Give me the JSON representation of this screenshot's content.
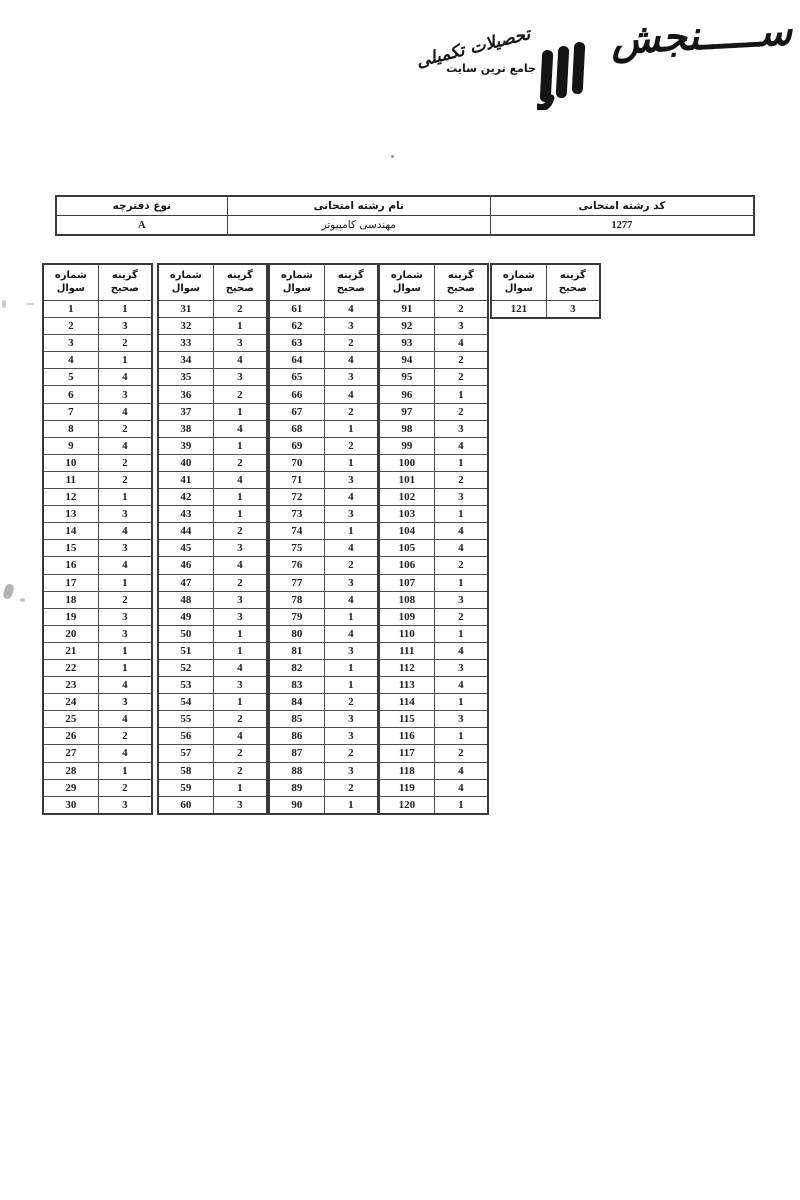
{
  "logo": {
    "brand": "ســـــنجش",
    "numeral": "۳",
    "tagline": "جامع ترین سایت",
    "tagline_script": "تحصیلات تکمیلی"
  },
  "info": {
    "columns": [
      {
        "label": "کد رشته امتحانی",
        "value": "1277"
      },
      {
        "label": "نام رشته امتحانی",
        "value": "مهندسی کامپیوتر"
      },
      {
        "label": "نوع دفترچه",
        "value": "A"
      }
    ]
  },
  "answers": {
    "q_header": [
      "شماره",
      "سوال"
    ],
    "a_header": [
      "گزینه",
      "صحیح"
    ],
    "tables": [
      {
        "rows": [
          [
            1,
            1
          ],
          [
            2,
            3
          ],
          [
            3,
            2
          ],
          [
            4,
            1
          ],
          [
            5,
            4
          ],
          [
            6,
            3
          ],
          [
            7,
            4
          ],
          [
            8,
            2
          ],
          [
            9,
            4
          ],
          [
            10,
            2
          ],
          [
            11,
            2
          ],
          [
            12,
            1
          ],
          [
            13,
            3
          ],
          [
            14,
            4
          ],
          [
            15,
            3
          ],
          [
            16,
            4
          ],
          [
            17,
            1
          ],
          [
            18,
            2
          ],
          [
            19,
            3
          ],
          [
            20,
            3
          ],
          [
            21,
            1
          ],
          [
            22,
            1
          ],
          [
            23,
            4
          ],
          [
            24,
            3
          ],
          [
            25,
            4
          ],
          [
            26,
            2
          ],
          [
            27,
            4
          ],
          [
            28,
            1
          ],
          [
            29,
            2
          ],
          [
            30,
            3
          ]
        ]
      },
      {
        "rows": [
          [
            31,
            2
          ],
          [
            32,
            1
          ],
          [
            33,
            3
          ],
          [
            34,
            4
          ],
          [
            35,
            3
          ],
          [
            36,
            2
          ],
          [
            37,
            1
          ],
          [
            38,
            4
          ],
          [
            39,
            1
          ],
          [
            40,
            2
          ],
          [
            41,
            4
          ],
          [
            42,
            1
          ],
          [
            43,
            1
          ],
          [
            44,
            2
          ],
          [
            45,
            3
          ],
          [
            46,
            4
          ],
          [
            47,
            2
          ],
          [
            48,
            3
          ],
          [
            49,
            3
          ],
          [
            50,
            1
          ],
          [
            51,
            1
          ],
          [
            52,
            4
          ],
          [
            53,
            3
          ],
          [
            54,
            1
          ],
          [
            55,
            2
          ],
          [
            56,
            4
          ],
          [
            57,
            2
          ],
          [
            58,
            2
          ],
          [
            59,
            1
          ],
          [
            60,
            3
          ]
        ]
      },
      {
        "rows": [
          [
            61,
            4
          ],
          [
            62,
            3
          ],
          [
            63,
            2
          ],
          [
            64,
            4
          ],
          [
            65,
            3
          ],
          [
            66,
            4
          ],
          [
            67,
            2
          ],
          [
            68,
            1
          ],
          [
            69,
            2
          ],
          [
            70,
            1
          ],
          [
            71,
            3
          ],
          [
            72,
            4
          ],
          [
            73,
            3
          ],
          [
            74,
            1
          ],
          [
            75,
            4
          ],
          [
            76,
            2
          ],
          [
            77,
            3
          ],
          [
            78,
            4
          ],
          [
            79,
            1
          ],
          [
            80,
            4
          ],
          [
            81,
            3
          ],
          [
            82,
            1
          ],
          [
            83,
            1
          ],
          [
            84,
            2
          ],
          [
            85,
            3
          ],
          [
            86,
            3
          ],
          [
            87,
            2
          ],
          [
            88,
            3
          ],
          [
            89,
            2
          ],
          [
            90,
            1
          ]
        ]
      },
      {
        "rows": [
          [
            91,
            2
          ],
          [
            92,
            3
          ],
          [
            93,
            4
          ],
          [
            94,
            2
          ],
          [
            95,
            2
          ],
          [
            96,
            1
          ],
          [
            97,
            2
          ],
          [
            98,
            3
          ],
          [
            99,
            4
          ],
          [
            100,
            1
          ],
          [
            101,
            2
          ],
          [
            102,
            3
          ],
          [
            103,
            1
          ],
          [
            104,
            4
          ],
          [
            105,
            4
          ],
          [
            106,
            2
          ],
          [
            107,
            1
          ],
          [
            108,
            3
          ],
          [
            109,
            2
          ],
          [
            110,
            1
          ],
          [
            111,
            4
          ],
          [
            112,
            3
          ],
          [
            113,
            4
          ],
          [
            114,
            1
          ],
          [
            115,
            3
          ],
          [
            116,
            1
          ],
          [
            117,
            2
          ],
          [
            118,
            4
          ],
          [
            119,
            4
          ],
          [
            120,
            1
          ]
        ]
      },
      {
        "rows": [
          [
            121,
            3
          ]
        ]
      }
    ]
  }
}
